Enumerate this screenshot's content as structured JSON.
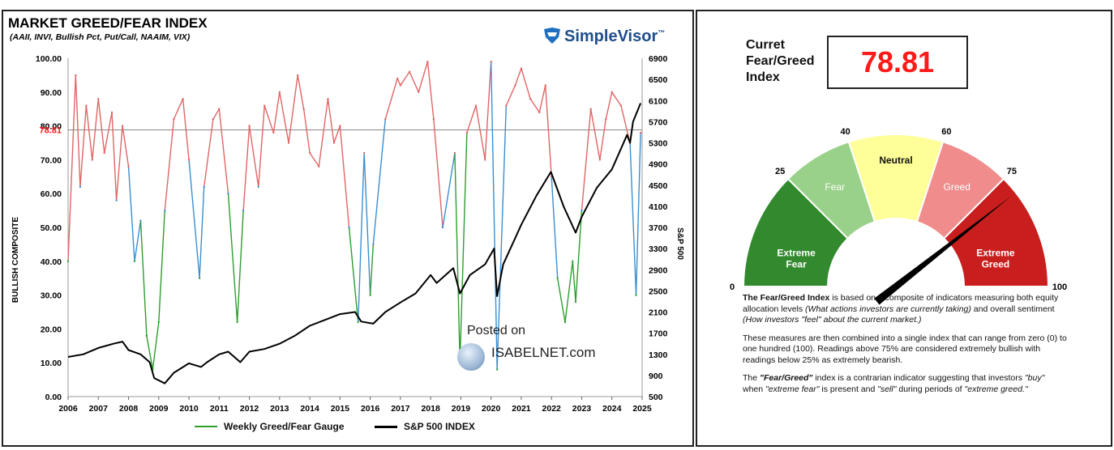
{
  "chart_data": [
    {
      "type": "line",
      "title": "MARKET GREED/FEAR INDEX",
      "subtitle": "(AAII, INVI, Bullish Pct, Put/Call, NAAIM, VIX)",
      "ylabel": "BULLISH COMPOSITE",
      "y2label": "S&P 500",
      "x_ticks": [
        "2006",
        "2007",
        "2008",
        "2009",
        "2010",
        "2011",
        "2012",
        "2013",
        "2014",
        "2015",
        "2016",
        "2017",
        "2018",
        "2019",
        "2020",
        "2021",
        "2022",
        "2023",
        "2024",
        "2025"
      ],
      "y_ticks": [
        "0.00",
        "10.00",
        "20.00",
        "30.00",
        "40.00",
        "50.00",
        "60.00",
        "70.00",
        "80.00",
        "90.00",
        "100.00"
      ],
      "y2_ticks": [
        "500",
        "900",
        "1300",
        "1700",
        "2100",
        "2500",
        "2900",
        "3300",
        "3700",
        "4100",
        "4500",
        "4900",
        "5300",
        "5700",
        "6100",
        "6500",
        "6900"
      ],
      "xlim": [
        2006,
        2025
      ],
      "ylim": [
        0,
        100
      ],
      "y2lim": [
        500,
        6900
      ],
      "current_line": {
        "value": 78.81,
        "label": "78.81"
      },
      "series": [
        {
          "name": "Weekly Greed/Fear Gauge",
          "axis": "left",
          "x": [
            2006.0,
            2006.25,
            2006.4,
            2006.6,
            2006.8,
            2007.0,
            2007.2,
            2007.45,
            2007.6,
            2007.8,
            2008.0,
            2008.2,
            2008.4,
            2008.6,
            2008.8,
            2009.0,
            2009.2,
            2009.5,
            2009.8,
            2010.0,
            2010.35,
            2010.5,
            2010.8,
            2011.0,
            2011.3,
            2011.6,
            2011.8,
            2012.0,
            2012.3,
            2012.5,
            2012.8,
            2013.0,
            2013.3,
            2013.6,
            2013.8,
            2014.0,
            2014.3,
            2014.6,
            2014.8,
            2015.0,
            2015.3,
            2015.6,
            2015.8,
            2016.0,
            2016.1,
            2016.5,
            2016.9,
            2017.0,
            2017.3,
            2017.6,
            2017.9,
            2018.1,
            2018.4,
            2018.8,
            2018.97,
            2019.2,
            2019.5,
            2019.8,
            2020.0,
            2020.2,
            2020.5,
            2020.8,
            2021.0,
            2021.3,
            2021.6,
            2021.8,
            2022.0,
            2022.2,
            2022.45,
            2022.7,
            2022.8,
            2023.0,
            2023.3,
            2023.6,
            2023.8,
            2024.0,
            2024.3,
            2024.6,
            2024.8,
            2024.95
          ],
          "values": [
            40,
            95,
            62,
            86,
            70,
            88,
            72,
            84,
            58,
            80,
            68,
            40,
            52,
            18,
            8,
            22,
            55,
            82,
            88,
            70,
            35,
            62,
            82,
            85,
            60,
            22,
            55,
            80,
            62,
            86,
            78,
            90,
            75,
            95,
            85,
            72,
            68,
            88,
            75,
            80,
            50,
            22,
            72,
            30,
            45,
            82,
            94,
            92,
            96,
            90,
            99,
            82,
            50,
            72,
            10,
            78,
            86,
            70,
            99,
            8,
            86,
            92,
            97,
            88,
            84,
            92,
            65,
            35,
            22,
            40,
            28,
            55,
            85,
            70,
            82,
            90,
            86,
            75,
            30,
            78
          ]
        },
        {
          "name": "S&P 500 INDEX",
          "axis": "right",
          "x": [
            2006.0,
            2006.5,
            2007.0,
            2007.5,
            2007.8,
            2008.0,
            2008.4,
            2008.7,
            2008.85,
            2009.2,
            2009.5,
            2010.0,
            2010.4,
            2010.6,
            2011.0,
            2011.3,
            2011.7,
            2012.0,
            2012.5,
            2013.0,
            2013.5,
            2014.0,
            2014.5,
            2015.0,
            2015.5,
            2015.7,
            2016.1,
            2016.5,
            2017.0,
            2017.5,
            2018.0,
            2018.2,
            2018.75,
            2018.97,
            2019.3,
            2019.8,
            2020.1,
            2020.2,
            2020.4,
            2020.8,
            2021.0,
            2021.5,
            2021.98,
            2022.4,
            2022.8,
            2023.0,
            2023.5,
            2024.0,
            2024.5,
            2024.6,
            2024.7,
            2024.95
          ],
          "values": [
            1250,
            1300,
            1420,
            1500,
            1540,
            1380,
            1300,
            1150,
            850,
            750,
            950,
            1130,
            1060,
            1150,
            1300,
            1350,
            1150,
            1350,
            1400,
            1500,
            1650,
            1840,
            1950,
            2060,
            2100,
            1920,
            1880,
            2100,
            2280,
            2450,
            2800,
            2650,
            2930,
            2450,
            2800,
            3000,
            3300,
            2400,
            3000,
            3500,
            3750,
            4300,
            4750,
            4100,
            3600,
            3900,
            4450,
            4800,
            5450,
            5300,
            5700,
            6050
          ]
        }
      ]
    },
    {
      "type": "gauge",
      "title": "Curret Fear/Greed Index",
      "value": 78.81,
      "range": [
        0,
        100
      ],
      "tick_labels": [
        "0",
        "25",
        "40",
        "60",
        "75",
        "100"
      ],
      "bands": [
        {
          "from": 0,
          "to": 25,
          "label": "Extreme Fear",
          "color": "#338a2e"
        },
        {
          "from": 25,
          "to": 40,
          "label": "Fear",
          "color": "#99d18a"
        },
        {
          "from": 40,
          "to": 60,
          "label": "Neutral",
          "color": "#ffff99"
        },
        {
          "from": 60,
          "to": 75,
          "label": "Greed",
          "color": "#f08c8c"
        },
        {
          "from": 75,
          "to": 100,
          "label": "Extreme Greed",
          "color": "#c81e1e"
        }
      ]
    }
  ],
  "brand": {
    "name": "SimpleVisor",
    "tm": "™"
  },
  "current": {
    "label": "Curret Fear/Greed Index",
    "value": "78.81"
  },
  "legend": {
    "gauge": "Weekly Greed/Fear Gauge",
    "sp500": "S&P 500 INDEX"
  },
  "watermark": {
    "line1": "Posted on",
    "line2": "ISABELNET.com"
  },
  "description": {
    "p1_bold": "The Fear/Greed Index",
    "p1_text": " is based on a composite of indicators measuring both equity allocation levels ",
    "p1_ital1": "(What actions investors are currently taking)",
    "p1_text2": " and overall sentiment ",
    "p1_ital2": "(How investors \"feel\" about the current market.)",
    "p2": "These measures are then combined into a single index that can range from zero (0) to one hundred (100). Readings above 75% are considered extremely bullish with readings below 25% as extremely bearish.",
    "p3_a": "The ",
    "p3_b": "\"Fear/Greed\"",
    "p3_c": " index is a contrarian indicator suggesting that investors ",
    "p3_d": "\"buy\"",
    "p3_e": " when ",
    "p3_f": "\"extreme fear\"",
    "p3_g": " is present and ",
    "p3_h": "\"sell\"",
    "p3_i": " during periods of ",
    "p3_j": "\"extreme greed.\""
  },
  "colors": {
    "greed": "#e06666",
    "neutral": "#3b8fd0",
    "fear": "#2f9e2f",
    "sp500": "#000000",
    "accent": "#ff1a1a"
  }
}
